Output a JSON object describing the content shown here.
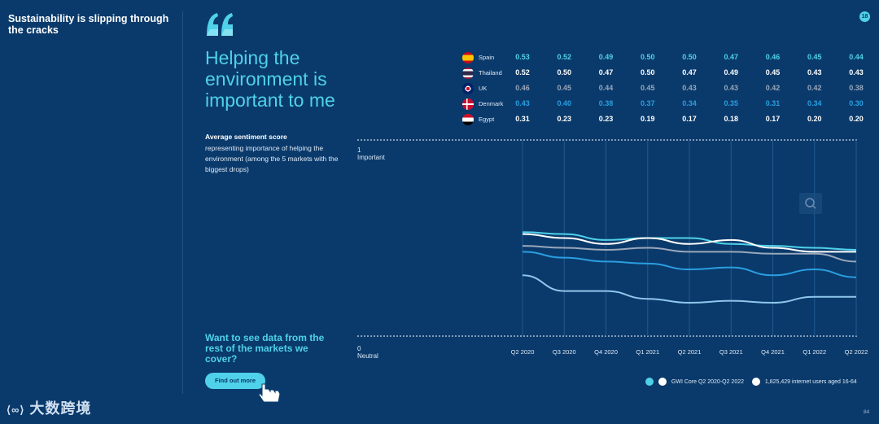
{
  "section_title": "Sustainability is slipping through the cracks",
  "page_badge": "18",
  "headline": "Helping the environment is important to me",
  "sentiment": {
    "title": "Average sentiment score",
    "description": "representing importance of helping the environment (among the 5 markets with the biggest drops)"
  },
  "cta": {
    "text": "Want to see data from the rest of the markets we cover?",
    "button": "Find out more"
  },
  "axis": {
    "top_value": "1",
    "top_label": "Important",
    "bottom_value": "0",
    "bottom_label": "Neutral"
  },
  "footer": {
    "source": "GWI Core Q2 2020-Q2 2022",
    "sample": "1,825,429 internet users aged 16-64"
  },
  "watermark": "大数跨境",
  "page_number": "84",
  "colors": {
    "background": "#0a3a6b",
    "accent": "#4fd1ea"
  },
  "chart_data": {
    "type": "line",
    "x": [
      "Q2 2020",
      "Q3 2020",
      "Q4 2020",
      "Q1 2021",
      "Q2 2021",
      "Q3 2021",
      "Q4 2021",
      "Q1 2022",
      "Q2 2022"
    ],
    "ylim": [
      0,
      1
    ],
    "series": [
      {
        "name": "Spain",
        "color": "#4fd1ea",
        "values": [
          0.53,
          0.52,
          0.49,
          0.5,
          0.5,
          0.47,
          0.46,
          0.45,
          0.44
        ]
      },
      {
        "name": "Thailand",
        "color": "#ffffff",
        "values": [
          0.52,
          0.5,
          0.47,
          0.5,
          0.47,
          0.49,
          0.45,
          0.43,
          0.43
        ]
      },
      {
        "name": "UK",
        "color": "#9aa7bb",
        "values": [
          0.46,
          0.45,
          0.44,
          0.45,
          0.43,
          0.43,
          0.42,
          0.42,
          0.38
        ]
      },
      {
        "name": "Denmark",
        "color": "#2a9ee0",
        "values": [
          0.43,
          0.4,
          0.38,
          0.37,
          0.34,
          0.35,
          0.31,
          0.34,
          0.3
        ]
      },
      {
        "name": "Egypt",
        "color": "#8fc6ec",
        "values": [
          0.31,
          0.23,
          0.23,
          0.19,
          0.17,
          0.18,
          0.17,
          0.2,
          0.2
        ]
      }
    ]
  }
}
